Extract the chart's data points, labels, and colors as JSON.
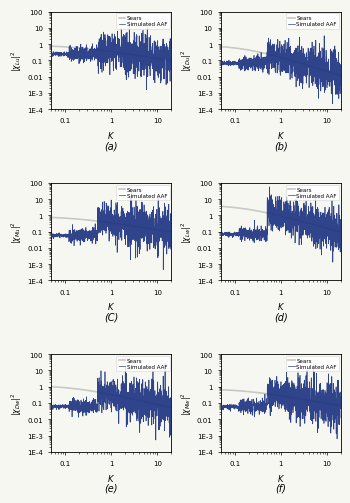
{
  "panels": [
    "(a)",
    "(b)",
    "(C)",
    "(d)",
    "(e)",
    "(f)"
  ],
  "xlim": [
    0.05,
    20
  ],
  "ylim": [
    0.0001,
    100
  ],
  "sears_color": "#c8c8c8",
  "sim_color": "#1a3080",
  "background": "#f7f7f2",
  "legend_labels": [
    "Sears",
    "Simulated AAF"
  ],
  "sears_params": [
    {
      "amp": 0.85,
      "slope": 0.45
    },
    {
      "amp": 0.9,
      "slope": 0.9
    },
    {
      "amp": 0.85,
      "slope": 0.45
    },
    {
      "amp": 4.5,
      "slope": 0.8
    },
    {
      "amp": 1.2,
      "slope": 0.65
    },
    {
      "amp": 0.75,
      "slope": 0.5
    }
  ],
  "sim_start": [
    0.25,
    0.07,
    0.06,
    0.07,
    0.06,
    0.06
  ],
  "noise_seeds": [
    101,
    202,
    303,
    404,
    505,
    606
  ]
}
